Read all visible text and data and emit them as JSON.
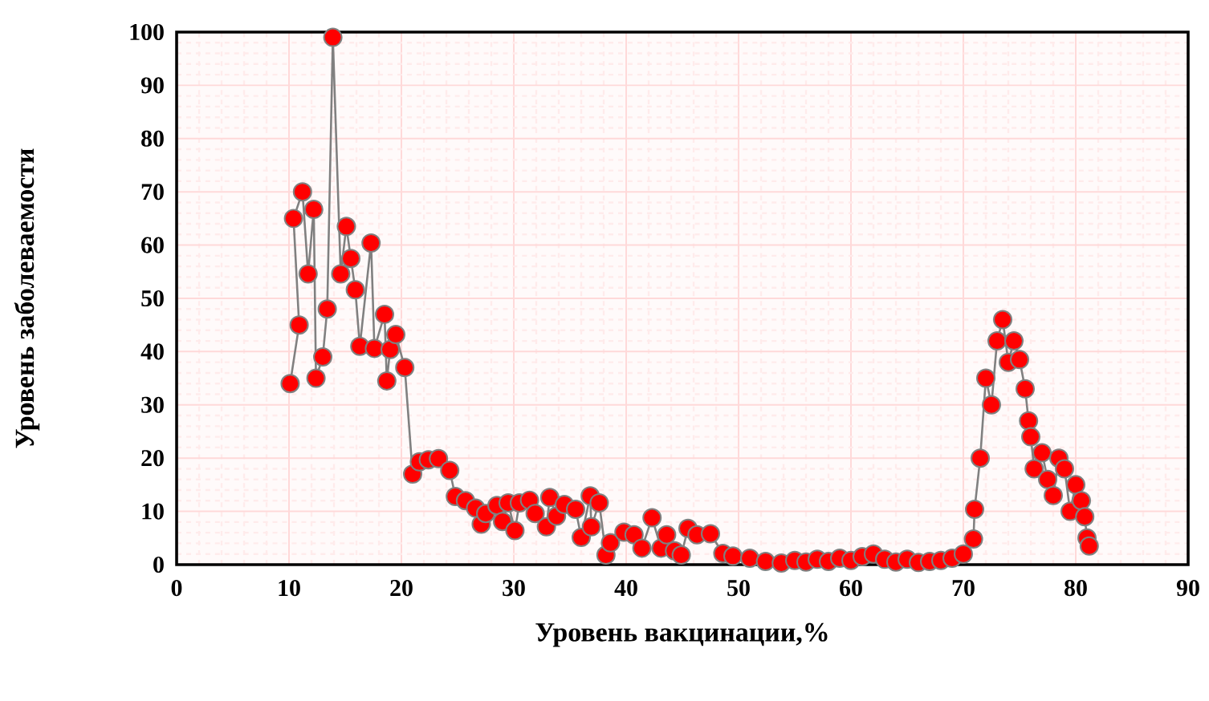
{
  "chart_data": {
    "type": "line",
    "xlabel": "Уровень вакцинации,%",
    "ylabel": "Уровень заболеваемости",
    "xlim": [
      0,
      90
    ],
    "ylim": [
      0,
      100
    ],
    "xticks": [
      0,
      10,
      20,
      30,
      40,
      50,
      60,
      70,
      80,
      90
    ],
    "yticks": [
      0,
      10,
      20,
      30,
      40,
      50,
      60,
      70,
      80,
      90,
      100
    ],
    "grid": true,
    "marker": "circle",
    "line_style": "solid",
    "series": [
      {
        "color": "#ff0000",
        "x": [
          10.1,
          10.9,
          10.4,
          11.2,
          11.7,
          12.2,
          12.4,
          13.0,
          13.4,
          13.9,
          14.6,
          15.1,
          15.5,
          15.9,
          16.3,
          17.3,
          17.6,
          18.5,
          18.7,
          19.0,
          19.5,
          20.3,
          21.0,
          21.6,
          22.4,
          23.3,
          24.3,
          24.8,
          25.7,
          26.6,
          27.1,
          27.5,
          28.5,
          29.0,
          29.5,
          30.1,
          30.5,
          31.4,
          31.9,
          32.9,
          33.2,
          33.8,
          34.5,
          35.5,
          36.0,
          36.8,
          36.9,
          37.6,
          38.2,
          38.6,
          39.8,
          40.7,
          41.4,
          42.3,
          43.1,
          43.6,
          44.3,
          44.9,
          45.5,
          46.3,
          47.5,
          48.6,
          49.5,
          51.0,
          52.4,
          53.8,
          55.0,
          56.0,
          57.0,
          58.0,
          59.0,
          60.0,
          61.0,
          62.0,
          63.0,
          64.0,
          65.0,
          66.0,
          67.0,
          68.0,
          69.0,
          70.0,
          70.9,
          71.0,
          71.5,
          72.0,
          72.5,
          73.0,
          73.5,
          74.0,
          74.5,
          75.0,
          75.5,
          75.8,
          76.0,
          76.3,
          77.0,
          77.5,
          78.0,
          78.5,
          79.0,
          79.5,
          80.0,
          80.5,
          80.8,
          81.0,
          81.2
        ],
        "values": [
          34,
          45,
          65,
          70,
          54.6,
          66.7,
          35,
          39,
          48,
          99,
          54.6,
          63.5,
          57.5,
          51.6,
          41,
          60.4,
          40.6,
          47,
          34.5,
          40.4,
          43.2,
          37,
          17,
          19.3,
          19.7,
          19.9,
          17.7,
          12.8,
          12,
          10.6,
          7.6,
          9.6,
          11.1,
          8.1,
          11.6,
          6.4,
          11.6,
          12.1,
          9.6,
          7.1,
          12.6,
          9.1,
          11.3,
          10.4,
          5.1,
          12.9,
          7.1,
          11.6,
          1.8,
          4.1,
          6.1,
          5.6,
          3.1,
          8.8,
          3.1,
          5.6,
          2.6,
          1.8,
          6.8,
          5.6,
          5.8,
          2.1,
          1.6,
          1.2,
          0.6,
          0.3,
          0.8,
          0.5,
          1.0,
          0.6,
          1.2,
          0.8,
          1.5,
          2.0,
          1.0,
          0.5,
          1.0,
          0.4,
          0.6,
          0.8,
          1.2,
          2.0,
          4.8,
          10.4,
          20,
          35,
          30,
          42,
          46,
          38,
          42,
          38.5,
          33,
          27,
          24,
          18,
          21,
          16,
          13,
          20,
          18,
          10,
          15,
          12,
          9,
          5,
          3.5
        ]
      }
    ]
  }
}
